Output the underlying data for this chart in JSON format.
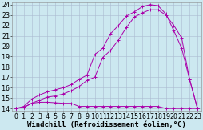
{
  "xlabel": "Windchill (Refroidissement éolien,°C)",
  "bg_color": "#cce8f0",
  "grid_color": "#aabbd0",
  "line_color": "#aa00aa",
  "xlim": [
    -0.5,
    23.5
  ],
  "ylim": [
    13.8,
    24.2
  ],
  "yticks": [
    14,
    15,
    16,
    17,
    18,
    19,
    20,
    21,
    22,
    23,
    24
  ],
  "xticks": [
    0,
    1,
    2,
    3,
    4,
    5,
    6,
    7,
    8,
    9,
    10,
    11,
    12,
    13,
    14,
    15,
    16,
    17,
    18,
    19,
    20,
    21,
    22,
    23
  ],
  "curve1_x": [
    0,
    1,
    2,
    3,
    4,
    5,
    6,
    7,
    8,
    9,
    10,
    11,
    12,
    13,
    14,
    15,
    16,
    17,
    18,
    19,
    20,
    21,
    22,
    23
  ],
  "curve1_y": [
    14.0,
    14.1,
    14.5,
    14.6,
    14.6,
    14.55,
    14.5,
    14.5,
    14.2,
    14.2,
    14.2,
    14.2,
    14.2,
    14.2,
    14.2,
    14.2,
    14.2,
    14.2,
    14.2,
    14.0,
    14.0,
    14.0,
    14.0,
    14.0
  ],
  "curve2_x": [
    0,
    1,
    2,
    3,
    4,
    5,
    6,
    7,
    8,
    9,
    10,
    11,
    12,
    13,
    14,
    15,
    16,
    17,
    18,
    19,
    20,
    21,
    22,
    23
  ],
  "curve2_y": [
    14.0,
    14.1,
    14.5,
    14.8,
    15.1,
    15.2,
    15.4,
    15.7,
    16.1,
    16.7,
    17.0,
    18.9,
    19.6,
    20.6,
    21.8,
    22.8,
    23.2,
    23.5,
    23.5,
    23.0,
    22.0,
    20.8,
    16.8,
    14.0
  ],
  "curve3_x": [
    0,
    1,
    2,
    3,
    4,
    5,
    6,
    7,
    8,
    9,
    10,
    11,
    12,
    13,
    14,
    15,
    16,
    17,
    18,
    19,
    20,
    21,
    22,
    23
  ],
  "curve3_y": [
    14.0,
    14.2,
    14.9,
    15.3,
    15.6,
    15.8,
    16.0,
    16.3,
    16.8,
    17.2,
    19.2,
    19.8,
    21.2,
    22.0,
    22.9,
    23.3,
    23.8,
    24.0,
    23.9,
    23.1,
    21.5,
    19.8,
    16.8,
    14.0
  ],
  "xlabel_fontsize": 6.5,
  "tick_fontsize": 6,
  "figwidth": 2.55,
  "figheight": 1.62,
  "dpi": 100
}
